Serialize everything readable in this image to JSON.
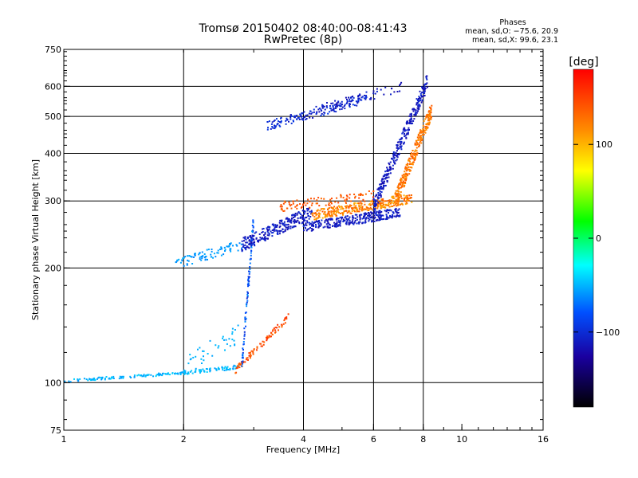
{
  "chart_data": {
    "type": "scatter",
    "title": "Tromsø 20150402 08:40:00-08:41:43",
    "subtitle": "RwPretec (8p)",
    "xlabel": "Frequency [MHz]",
    "ylabel": "Stationary phase Virtual Height [km]",
    "xscale": "log",
    "yscale": "log",
    "xlim": [
      1,
      16
    ],
    "ylim": [
      75,
      750
    ],
    "x_ticks": [
      1,
      2,
      4,
      6,
      8,
      10,
      16
    ],
    "x_tick_labels": [
      "1",
      "2",
      "4",
      "6",
      "8",
      "10",
      "16"
    ],
    "y_ticks": [
      75,
      100,
      200,
      300,
      400,
      500,
      600,
      750
    ],
    "y_tick_labels": [
      "75",
      "100",
      "200",
      "300",
      "400",
      "500",
      "600",
      "750"
    ],
    "x_gridlines": [
      2,
      4,
      6,
      8
    ],
    "y_gridlines": [
      100,
      200,
      300,
      400,
      500,
      600
    ],
    "grid": true,
    "info_box": {
      "heading": "Phases",
      "line1": "mean, sd,O: −75.6, 20.9",
      "line2": "mean, sd,X:  99.6, 23.1"
    },
    "colorbar": {
      "label": "[deg]",
      "min": -180,
      "max": 180,
      "ticks": [
        100,
        0,
        -100
      ],
      "tick_labels": [
        "100",
        "0",
        "−100"
      ]
    },
    "series": [
      {
        "x_range": [
          1.0,
          2.0
        ],
        "h_start": 101,
        "h_end": 106,
        "n": 120,
        "phase": [
          -40,
          -60
        ],
        "scatter_h": 0.008
      },
      {
        "x_range": [
          2.0,
          2.75
        ],
        "h_start": 106,
        "h_end": 110,
        "n": 70,
        "phase": [
          -40,
          -60
        ],
        "scatter_h": 0.012
      },
      {
        "x_range": [
          2.0,
          2.75
        ],
        "h_start": 110,
        "h_end": 135,
        "n": 40,
        "phase": [
          -45,
          -55
        ],
        "scatter_h": 0.06
      },
      {
        "x_range": [
          2.7,
          3.7
        ],
        "h_start": 108,
        "h_end": 150,
        "n": 80,
        "phase": [
          130,
          160
        ],
        "scatter_h": 0.02
      },
      {
        "x_range": [
          2.8,
          3.0
        ],
        "h_start": 110,
        "h_end": 270,
        "n": 90,
        "phase": [
          -60,
          -100
        ],
        "scatter_h": 0.05
      },
      {
        "x_range": [
          1.9,
          2.8
        ],
        "h_start": 205,
        "h_end": 230,
        "n": 90,
        "phase": [
          -50,
          -65
        ],
        "scatter_h": 0.03
      },
      {
        "x_range": [
          2.8,
          4.2
        ],
        "h_start": 230,
        "h_end": 280,
        "n": 260,
        "phase": [
          -100,
          -120
        ],
        "scatter_h": 0.04
      },
      {
        "x_range": [
          4.0,
          7.0
        ],
        "h_start": 255,
        "h_end": 280,
        "n": 300,
        "phase": [
          -100,
          -120
        ],
        "scatter_h": 0.03
      },
      {
        "x_range": [
          4.2,
          7.5
        ],
        "h_start": 275,
        "h_end": 305,
        "n": 320,
        "phase": [
          100,
          140
        ],
        "scatter_h": 0.03
      },
      {
        "x_range": [
          3.5,
          6.0
        ],
        "h_start": 290,
        "h_end": 310,
        "n": 90,
        "phase": [
          130,
          150
        ],
        "scatter_h": 0.03
      },
      {
        "x_range": [
          6.0,
          8.2
        ],
        "h_start": 290,
        "h_end": 620,
        "n": 300,
        "phase": [
          -100,
          -120
        ],
        "scatter_h": 0.05
      },
      {
        "x_range": [
          6.8,
          8.4
        ],
        "h_start": 300,
        "h_end": 520,
        "n": 280,
        "phase": [
          110,
          140
        ],
        "scatter_h": 0.05
      },
      {
        "x_range": [
          3.2,
          5.8
        ],
        "h_start": 470,
        "h_end": 560,
        "n": 150,
        "phase": [
          -90,
          -115
        ],
        "scatter_h": 0.03
      },
      {
        "x_range": [
          4.3,
          7.2
        ],
        "h_start": 520,
        "h_end": 600,
        "n": 70,
        "phase": [
          -100,
          -120
        ],
        "scatter_h": 0.03
      }
    ]
  }
}
